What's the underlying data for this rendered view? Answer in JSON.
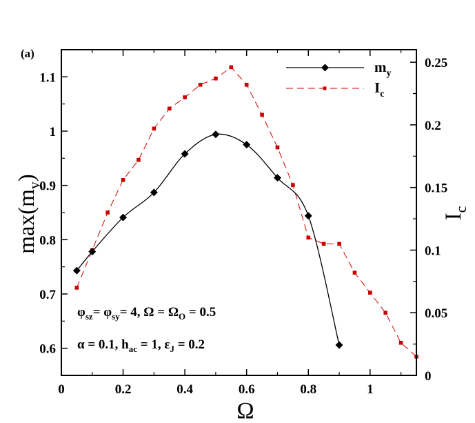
{
  "chart_data": {
    "type": "line",
    "panel_label": "(a)",
    "x": {
      "label": "Ω",
      "range": [
        0,
        1.15
      ],
      "ticks": [
        0,
        0.2,
        0.4,
        0.6,
        0.8,
        1
      ],
      "tick_labels": [
        "0",
        "0.2",
        "0.4",
        "0.6",
        "0.8",
        "1"
      ]
    },
    "y_left": {
      "label_main": "max(m",
      "label_sub": "y",
      "label_close": ")",
      "range": [
        0.55,
        1.15
      ],
      "ticks": [
        0.6,
        0.7,
        0.8,
        0.9,
        1.0,
        1.1
      ],
      "tick_labels": [
        "0.6",
        "0.7",
        "0.8",
        "0.9",
        "1",
        "1.1"
      ]
    },
    "y_right": {
      "label_main": "I",
      "label_sub": "c",
      "range": [
        0,
        0.26
      ],
      "ticks": [
        0,
        0.05,
        0.1,
        0.15,
        0.2,
        0.25
      ],
      "tick_labels": [
        "0",
        "0.05",
        "0.1",
        "0.15",
        "0.2",
        "0.25"
      ]
    },
    "series": [
      {
        "name_main": "m",
        "name_sub": "y",
        "axis": "left",
        "color": "#000000",
        "line": "solid",
        "marker": "diamond",
        "x": [
          0.05,
          0.1,
          0.2,
          0.3,
          0.4,
          0.5,
          0.6,
          0.7,
          0.8,
          0.9
        ],
        "values": [
          0.743,
          0.778,
          0.841,
          0.887,
          0.958,
          0.994,
          0.975,
          0.914,
          0.844,
          0.606
        ]
      },
      {
        "name_main": "I",
        "name_sub": "c",
        "axis": "right",
        "color": "#cc0000",
        "line": "dashed",
        "marker": "square",
        "x": [
          0.05,
          0.1,
          0.15,
          0.2,
          0.25,
          0.3,
          0.35,
          0.4,
          0.45,
          0.5,
          0.55,
          0.6,
          0.65,
          0.7,
          0.75,
          0.8,
          0.85,
          0.9,
          0.95,
          1.0,
          1.05,
          1.1,
          1.15
        ],
        "values": [
          0.07,
          0.1,
          0.13,
          0.156,
          0.172,
          0.197,
          0.213,
          0.222,
          0.232,
          0.237,
          0.246,
          0.232,
          0.208,
          0.182,
          0.152,
          0.11,
          0.105,
          0.105,
          0.082,
          0.066,
          0.05,
          0.026,
          0.015
        ]
      }
    ],
    "legend_position": "top-right",
    "annotations": {
      "line1": {
        "phi1": "φ",
        "phi1_sub": "sz",
        "eq1": "= ",
        "phi2": "φ",
        "phi2_sub": "sy",
        "eq2": "= 4, Ω = Ω",
        "omega_sub": "O",
        "tail": "= 0.5"
      },
      "line2": {
        "alpha": "α = 0.1,  h",
        "h_sub": "ac",
        "h_val": "= 1,  ε",
        "eps_sub": "J",
        "eps_val": "= 0.2"
      }
    }
  }
}
